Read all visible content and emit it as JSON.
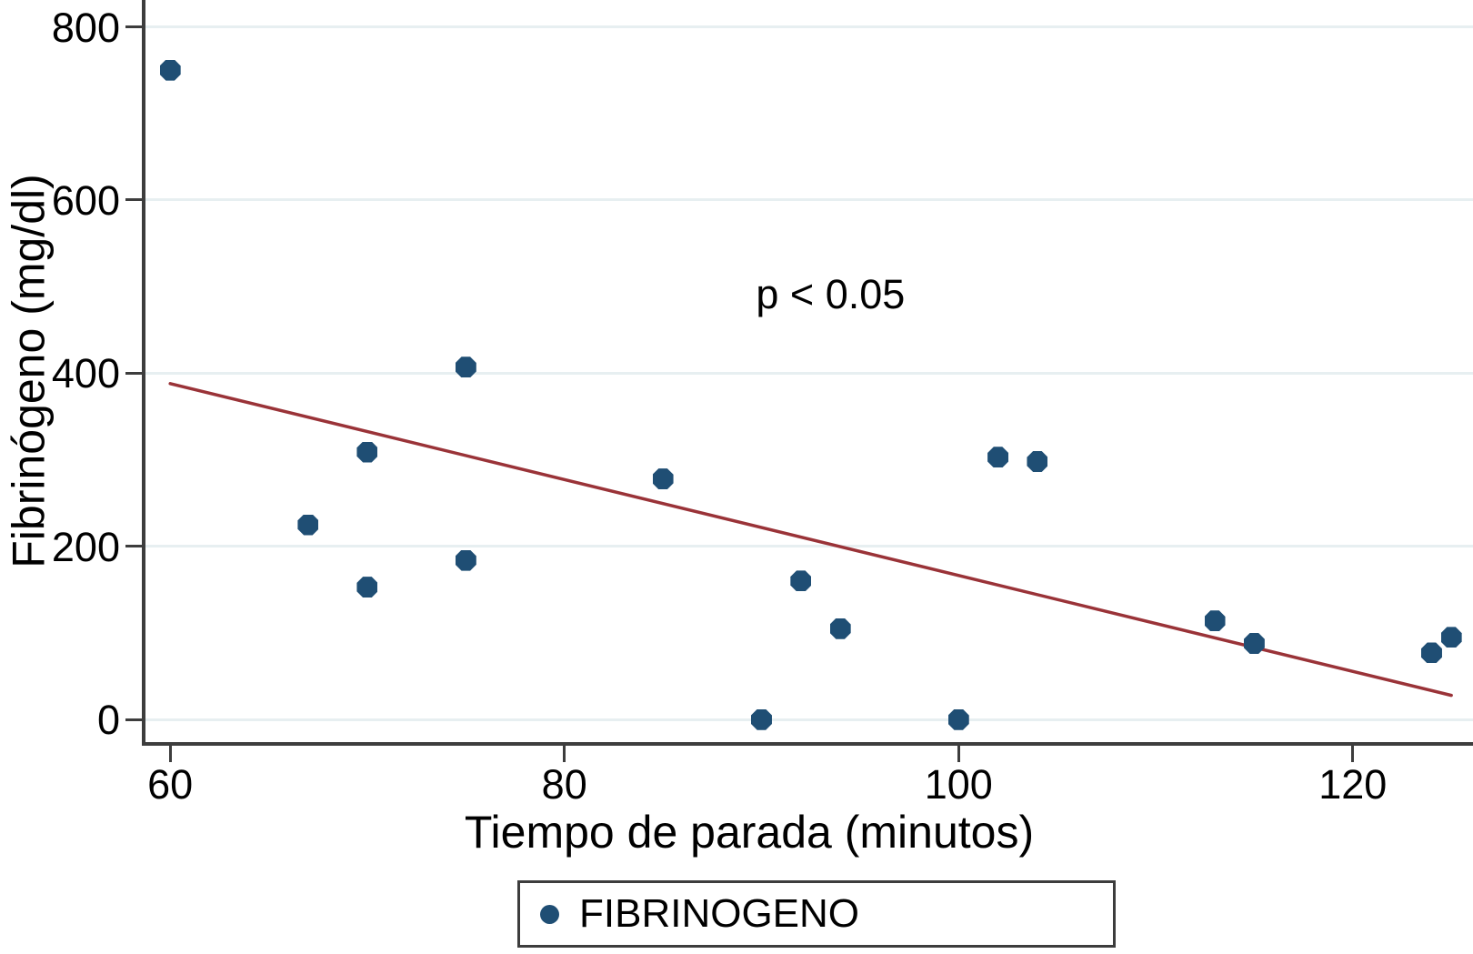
{
  "chart_data": {
    "type": "scatter",
    "title": "",
    "xlabel": "Tiempo de parada (minutos)",
    "ylabel": "Fibrinógeno (mg/dl)",
    "annotation": {
      "text": "p < 0.05",
      "x": 93.5,
      "y": 492
    },
    "x_ticks": [
      60,
      80,
      100,
      120
    ],
    "y_ticks": [
      0,
      200,
      400,
      600,
      800
    ],
    "xlim": [
      58.7,
      126.1
    ],
    "ylim": [
      -27,
      831
    ],
    "grid": true,
    "gridline_color": "#e7eff1",
    "axis_color": "#3d3d3d",
    "series": [
      {
        "name": "FIBRINOGENO",
        "marker": "octagon",
        "color": "#1f4e74",
        "points": [
          [
            60,
            750
          ],
          [
            67,
            225
          ],
          [
            70,
            309
          ],
          [
            70,
            153
          ],
          [
            75,
            407
          ],
          [
            75,
            184
          ],
          [
            85,
            278
          ],
          [
            90,
            0
          ],
          [
            92,
            160
          ],
          [
            94,
            105
          ],
          [
            100,
            0
          ],
          [
            102,
            303
          ],
          [
            104,
            298
          ],
          [
            113,
            114
          ],
          [
            115,
            88
          ],
          [
            124,
            77
          ],
          [
            125,
            95
          ]
        ]
      }
    ],
    "trend_line": {
      "color": "#9a3338",
      "x1": 60,
      "y1": 388,
      "x2": 125,
      "y2": 28
    },
    "legend": {
      "position": "bottom",
      "entries": [
        {
          "label": "FIBRINOGENO",
          "marker_color": "#1f4e74"
        }
      ]
    }
  }
}
